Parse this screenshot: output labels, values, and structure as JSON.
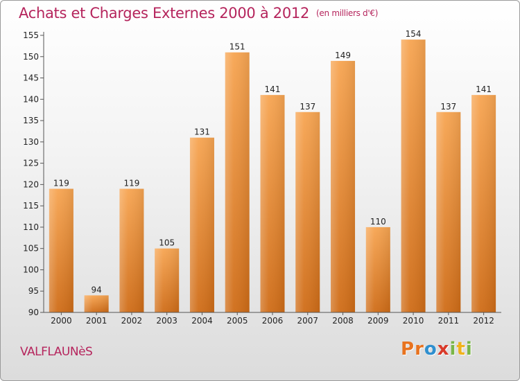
{
  "header": {
    "title": "Achats et Charges Externes 2000 à 2012",
    "unit": "(en milliers d'€)"
  },
  "footer": {
    "place": "VALFLAUNèS",
    "logo": {
      "letters": [
        "P",
        "r",
        "o",
        "x",
        "i",
        "t",
        "i"
      ]
    }
  },
  "colors": {
    "title": "#b5245c",
    "bar_top": "#f7a552",
    "bar_bottom": "#cf6c17",
    "logo": [
      "#e8731f",
      "#e8731f",
      "#2f8fcf",
      "#d93a2a",
      "#7ab648",
      "#f0b21c",
      "#7ab648"
    ]
  },
  "chart_data": {
    "type": "bar",
    "categories": [
      "2000",
      "2001",
      "2002",
      "2003",
      "2004",
      "2005",
      "2006",
      "2007",
      "2008",
      "2009",
      "2010",
      "2011",
      "2012"
    ],
    "values": [
      119,
      94,
      119,
      105,
      131,
      151,
      141,
      137,
      149,
      110,
      154,
      137,
      141
    ],
    "title": "Achats et Charges Externes 2000 à 2012",
    "ylim": [
      90,
      155
    ],
    "yticks": [
      90,
      95,
      100,
      105,
      110,
      115,
      120,
      125,
      130,
      135,
      140,
      145,
      150,
      155
    ],
    "grid": false,
    "legend": "none"
  }
}
